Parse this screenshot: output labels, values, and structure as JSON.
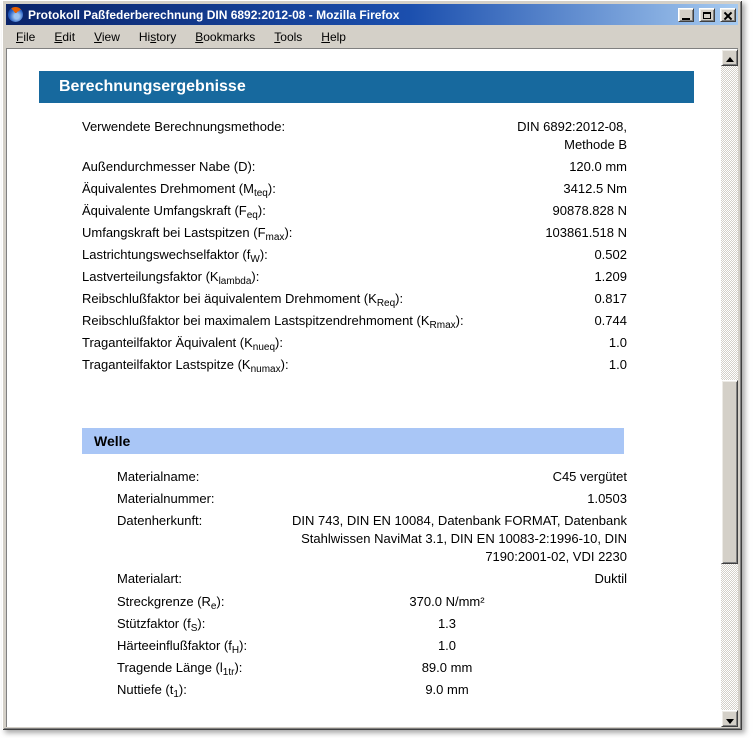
{
  "window": {
    "title": "Protokoll Paßfederberechnung DIN 6892:2012-08 - Mozilla Firefox",
    "app_icon": "firefox-icon",
    "control_icons": [
      "minimize-icon",
      "maximize-icon",
      "close-icon"
    ]
  },
  "menu": {
    "items": [
      {
        "pre": "",
        "accel": "F",
        "post": "ile"
      },
      {
        "pre": "",
        "accel": "E",
        "post": "dit"
      },
      {
        "pre": "",
        "accel": "V",
        "post": "iew"
      },
      {
        "pre": "Hi",
        "accel": "s",
        "post": "tory"
      },
      {
        "pre": "",
        "accel": "B",
        "post": "ookmarks"
      },
      {
        "pre": "",
        "accel": "T",
        "post": "ools"
      },
      {
        "pre": "",
        "accel": "H",
        "post": "elp"
      }
    ]
  },
  "page": {
    "main_header": "Berechnungsergebnisse",
    "results": {
      "rows": [
        {
          "label_pre": "Verwendete Berechnungsmethode:",
          "label_sub": "",
          "label_post": "",
          "value": "DIN 6892:2012-08, Methode B"
        },
        {
          "label_pre": "Außendurchmesser Nabe (D):",
          "label_sub": "",
          "label_post": "",
          "value": "120.0 mm"
        },
        {
          "label_pre": "Äquivalentes Drehmoment (M",
          "label_sub": "teq",
          "label_post": "):",
          "value": "3412.5 Nm"
        },
        {
          "label_pre": "Äquivalente Umfangskraft (F",
          "label_sub": "eq",
          "label_post": "):",
          "value": "90878.828 N"
        },
        {
          "label_pre": "Umfangskraft bei Lastspitzen (F",
          "label_sub": "max",
          "label_post": "):",
          "value": "103861.518 N"
        },
        {
          "label_pre": "Lastrichtungswechselfaktor (f",
          "label_sub": "W",
          "label_post": "):",
          "value": "0.502"
        },
        {
          "label_pre": "Lastverteilungsfaktor (K",
          "label_sub": "lambda",
          "label_post": "):",
          "value": "1.209"
        },
        {
          "label_pre": "Reibschlußfaktor bei äquivalentem Drehmoment (K",
          "label_sub": "Req",
          "label_post": "):",
          "value": "0.817"
        },
        {
          "label_pre": "Reibschlußfaktor bei maximalem Lastspitzendrehmoment (K",
          "label_sub": "Rmax",
          "label_post": "):",
          "value": "0.744"
        },
        {
          "label_pre": "Traganteilfaktor Äquivalent (K",
          "label_sub": "nueq",
          "label_post": "):",
          "value": "1.0"
        },
        {
          "label_pre": "Traganteilfaktor Lastspitze (K",
          "label_sub": "numax",
          "label_post": "):",
          "value": "1.0"
        }
      ]
    },
    "welle": {
      "header": "Welle",
      "rows": [
        {
          "label_pre": "Materialname:",
          "label_sub": "",
          "label_post": "",
          "value": "C45 vergütet"
        },
        {
          "label_pre": "Materialnummer:",
          "label_sub": "",
          "label_post": "",
          "value": "1.0503"
        },
        {
          "label_pre": "Datenherkunft:",
          "label_sub": "",
          "label_post": "",
          "value": "DIN 743, DIN EN 10084, Datenbank FORMAT, Datenbank Stahlwissen NaviMat 3.1, DIN EN 10083-2:1996-10, DIN 7190:2001-02, VDI 2230"
        },
        {
          "label_pre": "Materialart:",
          "label_sub": "",
          "label_post": "",
          "value": "Duktil"
        },
        {
          "label_pre": "Streckgrenze (R",
          "label_sub": "e",
          "label_post": "):",
          "value": "370.0 N/mm²"
        },
        {
          "label_pre": "Stützfaktor (f",
          "label_sub": "S",
          "label_post": "):",
          "value": "1.3"
        },
        {
          "label_pre": "Härteeinflußfaktor (f",
          "label_sub": "H",
          "label_post": "):",
          "value": "1.0"
        },
        {
          "label_pre": "Tragende Länge (l",
          "label_sub": "1tr",
          "label_post": "):",
          "value": "89.0 mm"
        },
        {
          "label_pre": "Nuttiefe (t",
          "label_sub": "1",
          "label_post": "):",
          "value": "9.0 mm"
        }
      ]
    }
  },
  "colors": {
    "main_header_bg": "#17699e",
    "welle_header_bg": "#a9c6f6",
    "titlebar_left": "#0a246a",
    "titlebar_right": "#a6caf0",
    "chrome": "#d4d0c8"
  }
}
